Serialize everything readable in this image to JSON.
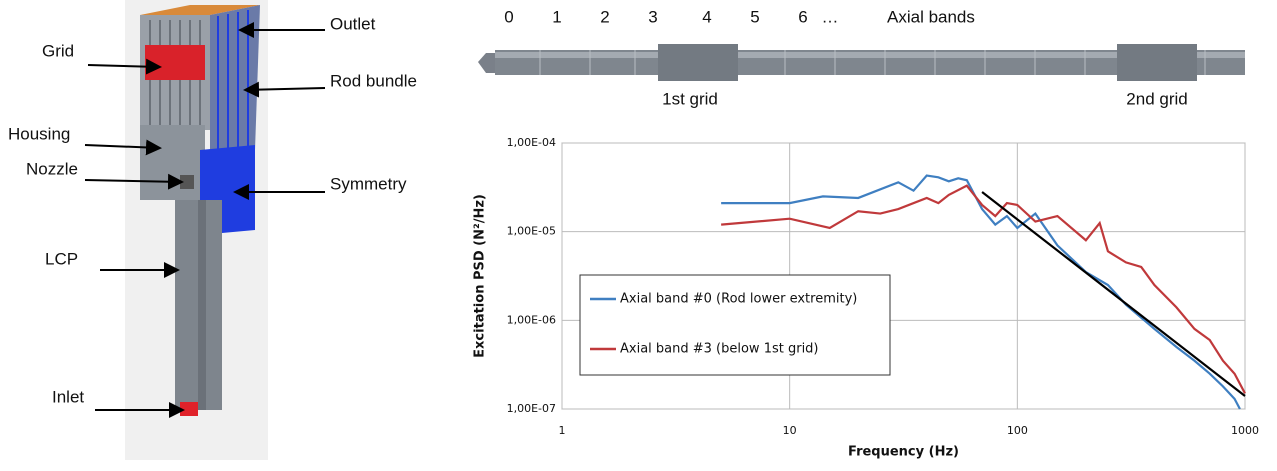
{
  "diagram": {
    "labels": [
      "Outlet",
      "Grid",
      "Rod bundle",
      "Housing",
      "Nozzle",
      "Symmetry",
      "LCP",
      "Inlet"
    ]
  },
  "rod": {
    "band_labels": [
      "0",
      "1",
      "2",
      "3",
      "4",
      "5",
      "6",
      "…"
    ],
    "title": "Axial bands",
    "grids": [
      "1st grid",
      "2nd grid"
    ]
  },
  "chart_data": {
    "type": "line",
    "x_label": "Frequency (Hz)",
    "y_label": "Excitation PSD (N²/Hz)",
    "log_x": true,
    "log_y": true,
    "grid": true,
    "legend": "lower left",
    "xlim": [
      1,
      1000
    ],
    "xticks": [
      1,
      10,
      100,
      1000
    ],
    "ylim": [
      1e-07,
      0.0001
    ],
    "yticks": [
      {
        "value": 1e-07,
        "label": "1,00E-07"
      },
      {
        "value": 1e-06,
        "label": "1,00E-06"
      },
      {
        "value": 1e-05,
        "label": "1,00E-05"
      },
      {
        "value": 0.0001,
        "label": "1,00E-04"
      }
    ],
    "series": [
      {
        "name": "Axial band #0 (Rod lower extremity)",
        "color": "#3f7fc1",
        "x": [
          5,
          7,
          10,
          14,
          20,
          30,
          35,
          40,
          45,
          50,
          55,
          60,
          70,
          80,
          90,
          100,
          120,
          150,
          200,
          250,
          300,
          400,
          500,
          600,
          700,
          800,
          900,
          950
        ],
        "values": [
          2.1e-05,
          2.1e-05,
          2.1e-05,
          2.5e-05,
          2.4e-05,
          3.6e-05,
          2.9e-05,
          4.3e-05,
          4.1e-05,
          3.7e-05,
          4e-05,
          3.8e-05,
          1.8e-05,
          1.2e-05,
          1.5e-05,
          1.1e-05,
          1.6e-05,
          7e-06,
          3.5e-06,
          2.5e-06,
          1.5e-06,
          8e-07,
          5e-07,
          3.5e-07,
          2.5e-07,
          1.8e-07,
          1.3e-07,
          1e-07
        ]
      },
      {
        "name": "Axial band #3 (below 1st grid)",
        "color": "#c0393b",
        "x": [
          5,
          10,
          15,
          20,
          25,
          30,
          40,
          45,
          50,
          60,
          70,
          80,
          90,
          100,
          120,
          150,
          200,
          230,
          250,
          300,
          350,
          400,
          500,
          600,
          700,
          800,
          900,
          1000
        ],
        "values": [
          1.2e-05,
          1.4e-05,
          1.1e-05,
          1.7e-05,
          1.6e-05,
          1.8e-05,
          2.4e-05,
          2.1e-05,
          2.6e-05,
          3.3e-05,
          2e-05,
          1.5e-05,
          2.1e-05,
          2e-05,
          1.3e-05,
          1.5e-05,
          8e-06,
          1.25e-05,
          6e-06,
          4.5e-06,
          4e-06,
          2.5e-06,
          1.4e-06,
          8e-07,
          6e-07,
          3.5e-07,
          2.5e-07,
          1.5e-07
        ]
      },
      {
        "color": "#000000",
        "x": [
          70,
          1000
        ],
        "values": [
          2.8e-05,
          1.4e-07
        ]
      }
    ]
  }
}
